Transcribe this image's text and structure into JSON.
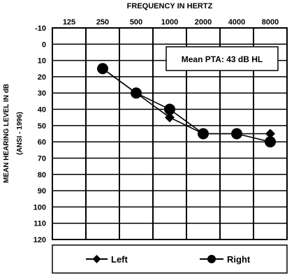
{
  "chart_data": {
    "type": "line",
    "title": "FREQUENCY IN HERTZ",
    "ylabel": "MEAN HEARING LEVEL IN dB",
    "ylabel_sub": "(ANSI - 1996)",
    "categories": [
      "125",
      "250",
      "500",
      "1000",
      "2000",
      "4000",
      "8000"
    ],
    "y_ticks": [
      "-10",
      "0",
      "10",
      "20",
      "30",
      "40",
      "50",
      "60",
      "70",
      "80",
      "90",
      "100",
      "110",
      "120"
    ],
    "ylim": [
      -10,
      120
    ],
    "y_inverted": true,
    "grid": true,
    "annotation": "Mean PTA: 43 dB HL",
    "legend_placement": "bottom",
    "series": [
      {
        "name": "Left",
        "marker": "diamond",
        "values": [
          null,
          15,
          30,
          45,
          55,
          55,
          55
        ]
      },
      {
        "name": "Right",
        "marker": "circle",
        "values": [
          null,
          15,
          30,
          40,
          55,
          55,
          60
        ]
      }
    ]
  }
}
